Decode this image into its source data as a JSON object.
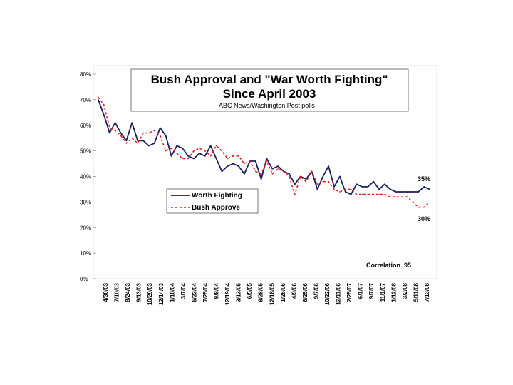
{
  "chart_data": {
    "type": "line",
    "title": "Bush Approval and \"War Worth Fighting\"",
    "subtitle": "Since April 2003",
    "source": "ABC News/Washington Post polls",
    "ylim": [
      0,
      80
    ],
    "yticks": [
      "0%",
      "10%",
      "20%",
      "30%",
      "40%",
      "50%",
      "60%",
      "70%",
      "80%"
    ],
    "x_tick_labels": [
      "4/30/03",
      "7/10/03",
      "8/24/03",
      "9/13/03",
      "10/29/03",
      "12/14/03",
      "1/18/04",
      "3/7/04",
      "5/23/04",
      "7/25/04",
      "9/8/04",
      "12/19/04",
      "3/13/05",
      "6/5/05",
      "8/28/05",
      "12/18/05",
      "1/26/06",
      "4/9/06",
      "6/25/06",
      "9/7/06",
      "10/22/06",
      "12/11/06",
      "2/25/07",
      "6/1/07",
      "9/7/07",
      "11/1/07",
      "1/12/08",
      "3/2/08",
      "5/11/08",
      "7/13/08"
    ],
    "series": [
      {
        "name": "Worth Fighting",
        "color": "#1a1f5e",
        "style": "solid",
        "values": [
          70,
          64,
          57,
          61,
          57,
          54,
          61,
          54,
          54,
          52,
          53,
          59,
          56,
          48,
          52,
          51,
          48,
          47,
          49,
          48,
          52,
          47,
          42,
          44,
          45,
          44,
          41,
          46,
          46,
          39,
          47,
          43,
          44,
          42,
          41,
          37,
          40,
          39,
          42,
          35,
          40,
          44,
          36,
          40,
          34,
          33,
          37,
          36,
          36,
          38,
          35,
          37,
          35,
          34,
          34,
          34,
          34,
          34,
          36,
          35
        ]
      },
      {
        "name": "Bush Approve",
        "color": "#d81e1e",
        "style": "dashed",
        "values": [
          71,
          68,
          59,
          58,
          56,
          53,
          55,
          53,
          57,
          57,
          58,
          56,
          50,
          51,
          49,
          47,
          47,
          50,
          51,
          50,
          48,
          52,
          50,
          47,
          48,
          48,
          45,
          46,
          42,
          41,
          46,
          41,
          43,
          42,
          40,
          33,
          40,
          38,
          42,
          37,
          38,
          38,
          35,
          34,
          35,
          35,
          33,
          33,
          33,
          33,
          33,
          33,
          32,
          32,
          32,
          32,
          30,
          28,
          28,
          30
        ]
      }
    ],
    "legend": [
      "Worth Fighting",
      "Bush Approve"
    ],
    "annotations": {
      "worth_end": "35%",
      "approve_end": "30%",
      "correlation": "Correlation .95"
    }
  }
}
